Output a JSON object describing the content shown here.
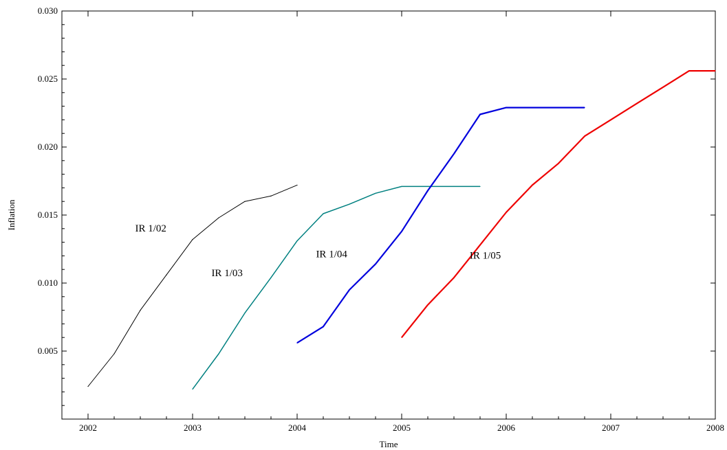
{
  "chart_data": {
    "type": "line",
    "xlabel": "Time",
    "ylabel": "Inflation",
    "xlim": [
      2001.75,
      2008
    ],
    "ylim": [
      0,
      0.03
    ],
    "x_ticks": [
      2002,
      2003,
      2004,
      2005,
      2006,
      2007,
      2008
    ],
    "x_tick_labels": [
      "2002",
      "2003",
      "2004",
      "2005",
      "2006",
      "2007",
      "2008"
    ],
    "y_ticks": [
      0.005,
      0.01,
      0.015,
      0.02,
      0.025,
      0.03
    ],
    "y_tick_labels": [
      "0.005",
      "0.010",
      "0.015",
      "0.020",
      "0.025",
      "0.030"
    ],
    "grid": false,
    "series": [
      {
        "name": "IR 1/02",
        "color": "#000000",
        "x": [
          2002,
          2002.25,
          2002.5,
          2002.75,
          2003,
          2003.25,
          2003.5,
          2003.75,
          2004
        ],
        "values": [
          0.0024,
          0.0048,
          0.008,
          0.0106,
          0.0132,
          0.0148,
          0.016,
          0.0164,
          0.0172
        ]
      },
      {
        "name": "IR 1/03",
        "color": "#008080",
        "x": [
          2003,
          2003.25,
          2003.5,
          2003.75,
          2004,
          2004.25,
          2004.5,
          2004.75,
          2005,
          2005.25,
          2005.5,
          2005.75
        ],
        "values": [
          0.0022,
          0.0048,
          0.0078,
          0.0104,
          0.0131,
          0.0151,
          0.0158,
          0.0166,
          0.0171,
          0.0171,
          0.0171,
          0.0171
        ]
      },
      {
        "name": "IR 1/04",
        "color": "#0000dd",
        "x": [
          2004,
          2004.25,
          2004.5,
          2004.75,
          2005,
          2005.25,
          2005.5,
          2005.75,
          2006,
          2006.25,
          2006.5,
          2006.75
        ],
        "values": [
          0.0056,
          0.0068,
          0.0095,
          0.0114,
          0.0138,
          0.0168,
          0.0195,
          0.0224,
          0.0229,
          0.0229,
          0.0229,
          0.0229
        ]
      },
      {
        "name": "IR 1/05",
        "color": "#ee0000",
        "x": [
          2005,
          2005.25,
          2005.5,
          2005.75,
          2006,
          2006.25,
          2006.5,
          2006.75,
          2007,
          2007.25,
          2007.5,
          2007.75,
          2008
        ],
        "values": [
          0.006,
          0.0084,
          0.0104,
          0.0128,
          0.0152,
          0.0172,
          0.0188,
          0.0208,
          0.022,
          0.0232,
          0.0244,
          0.0256,
          0.0256
        ]
      }
    ],
    "annotations": [
      {
        "text": "IR 1/02",
        "x": 2002.6,
        "y": 0.0138
      },
      {
        "text": "IR 1/03",
        "x": 2003.33,
        "y": 0.0105
      },
      {
        "text": "IR 1/04",
        "x": 2004.33,
        "y": 0.0119
      },
      {
        "text": "IR 1/05",
        "x": 2005.8,
        "y": 0.0118
      }
    ]
  }
}
